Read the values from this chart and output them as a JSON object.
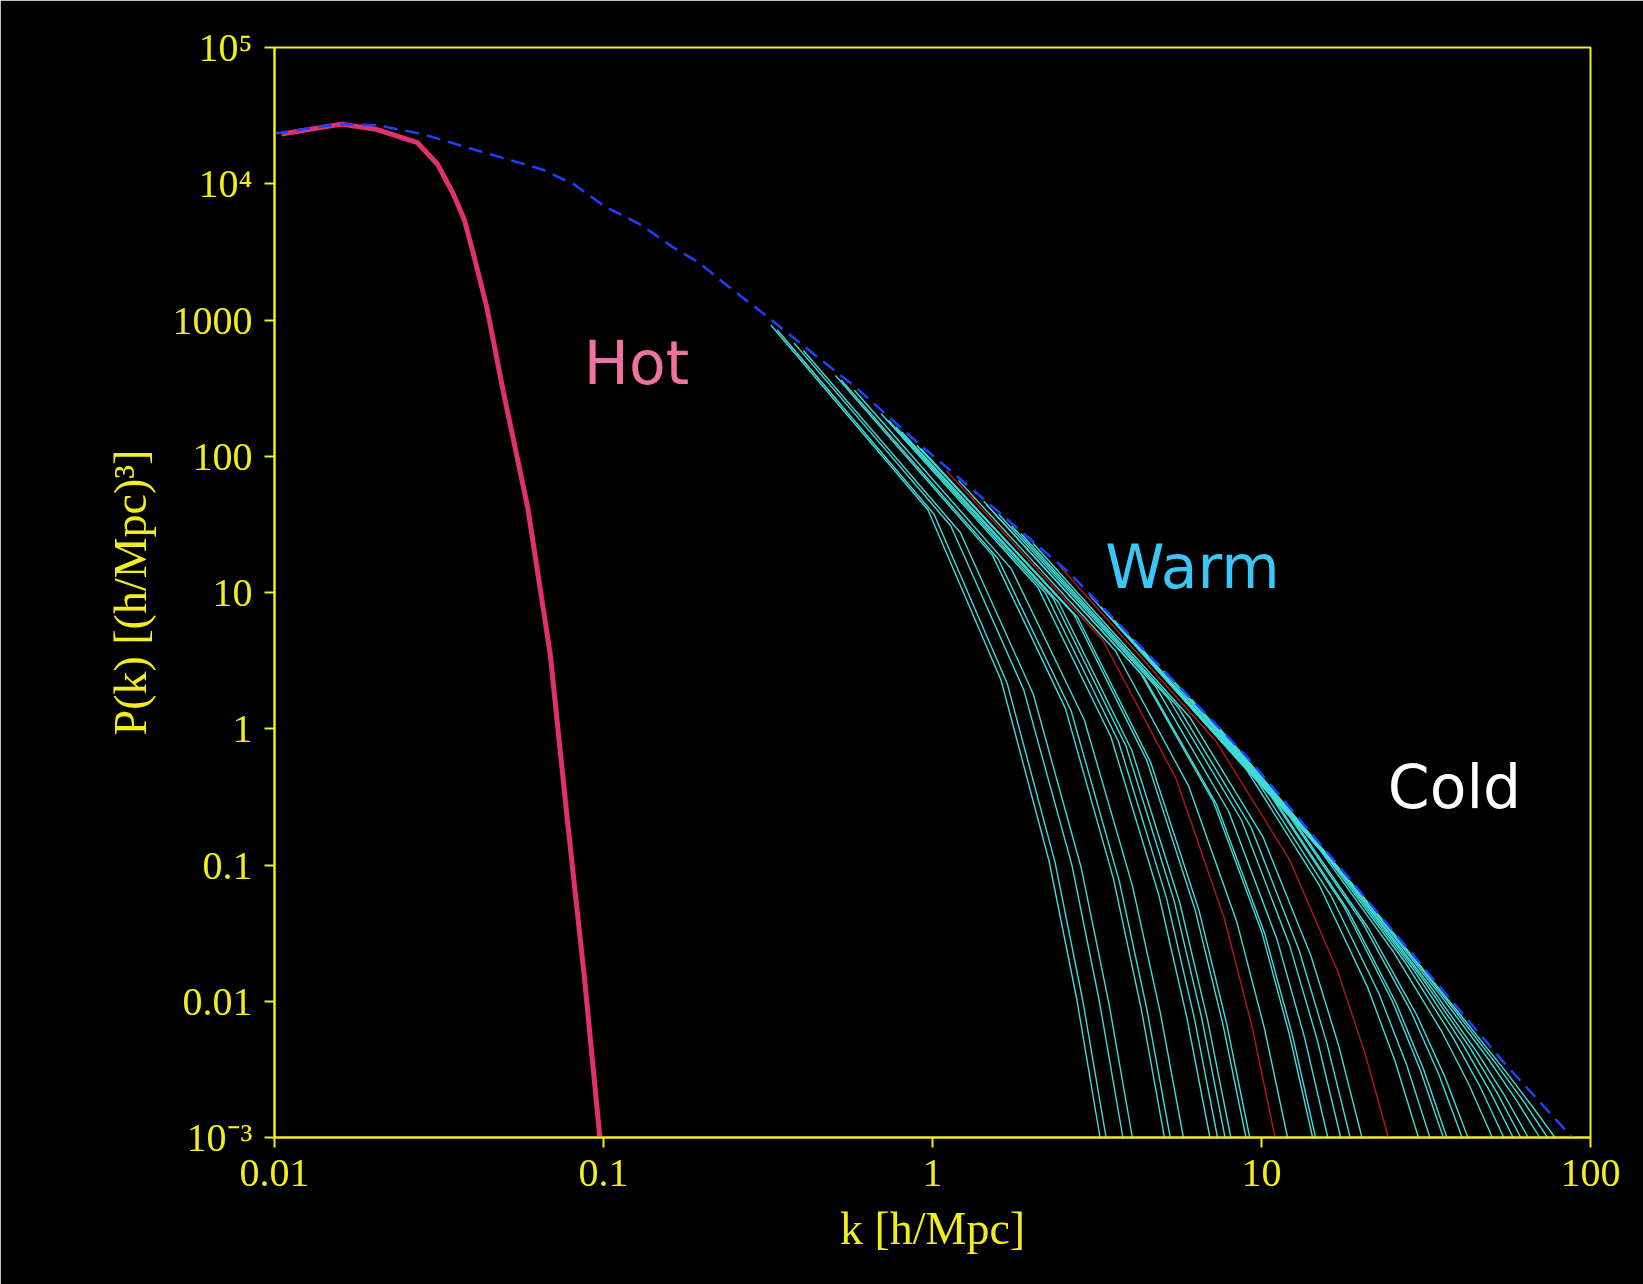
{
  "chart_data": {
    "type": "line",
    "xlabel": "k [h/Mpc]",
    "ylabel": "P(k) [(h/Mpc)³]",
    "log": "xy",
    "xlim": [
      0.01,
      100
    ],
    "ylim": [
      0.001,
      100000
    ],
    "xticks": [
      0.01,
      0.1,
      1,
      10,
      100
    ],
    "yticks": [
      {
        "value": 0.001,
        "label": "10⁻³"
      },
      0.01,
      0.1,
      1,
      10,
      100,
      1000,
      {
        "value": 10000,
        "label": "10⁴"
      },
      {
        "value": 100000,
        "label": "10⁵"
      }
    ],
    "grid": false,
    "annotations": [
      "Hot",
      "Warm",
      "Cold"
    ],
    "series": [
      {
        "color": "#e0306f",
        "x": [
          0.0105,
          0.016,
          0.0205,
          0.0272,
          0.0313,
          0.0349,
          0.0378,
          0.0402,
          0.0442,
          0.0493,
          0.0589,
          0.0689,
          0.0775,
          0.0873,
          0.0975
        ],
        "values": [
          23200,
          27400,
          25000,
          20000,
          13900,
          8500,
          5400,
          3080,
          1240,
          320,
          41.5,
          3.5,
          0.223,
          0.0157,
          0.001
        ]
      },
      {
        "color": "#3fdcd8",
        "x": [
          0.323,
          0.969,
          1.615,
          2.261,
          2.746,
          3.23
        ],
        "values": [
          916,
          40.3,
          2.28,
          0.107,
          0.0103,
          0.001
        ]
      },
      {
        "color": "#3fdcd8",
        "x": [
          0.337,
          1.011,
          1.685,
          2.359,
          2.865,
          3.37
        ],
        "values": [
          847,
          37.5,
          2.17,
          0.104,
          0.01,
          0.001
        ]
      },
      {
        "color": "#3fdcd8",
        "x": [
          0.379,
          1.137,
          1.895,
          2.653,
          3.222,
          3.79
        ],
        "values": [
          679,
          30.8,
          1.92,
          0.0998,
          0.00973,
          0.001
        ]
      },
      {
        "color": "#3fdcd8",
        "x": [
          0.405,
          1.215,
          2.025,
          2.835,
          3.443,
          4.05
        ],
        "values": [
          598,
          27.6,
          1.79,
          0.0942,
          0.00946,
          0.001
        ]
      },
      {
        "color": "#3fdcd8",
        "x": [
          0.507,
          1.521,
          2.535,
          3.549,
          4.31,
          5.07
        ],
        "values": [
          392,
          18.8,
          1.41,
          0.0791,
          0.00879,
          0.001
        ]
      },
      {
        "color": "#3fdcd8",
        "x": [
          0.528,
          1.584,
          2.64,
          3.696,
          4.488,
          5.28
        ],
        "values": [
          363,
          17.6,
          1.35,
          0.0762,
          0.00863,
          0.001
        ]
      },
      {
        "color": "#3fdcd8",
        "x": [
          0.579,
          1.737,
          2.895,
          4.053,
          4.922,
          5.79
        ],
        "values": [
          305,
          14.9,
          1.16,
          0.0703,
          0.0083,
          0.001
        ]
      },
      {
        "color": "#3fdcd8",
        "x": [
          0.697,
          2.091,
          3.485,
          4.879,
          5.925,
          6.97
        ],
        "values": [
          206,
          10.9,
          0.873,
          0.0597,
          0.00769,
          0.001
        ]
      },
      {
        "color": "#3fdcd8",
        "x": [
          0.735,
          2.205,
          3.675,
          5.145,
          6.248,
          7.35
        ],
        "values": [
          184,
          9.91,
          0.807,
          0.0571,
          0.00755,
          0.001
        ]
      },
      {
        "color": "#3fdcd8",
        "x": [
          0.775,
          2.325,
          3.875,
          5.425,
          6.588,
          7.75
        ],
        "values": [
          164,
          9.08,
          0.745,
          0.0547,
          0.00745,
          0.001
        ]
      },
      {
        "color": "#3fdcd8",
        "x": [
          0.807,
          2.421,
          4.035,
          5.649,
          6.86,
          8.07
        ],
        "values": [
          151,
          8.41,
          0.695,
          0.0524,
          0.00724,
          0.001
        ]
      },
      {
        "color": "#3fdcd8",
        "x": [
          0.897,
          2.691,
          4.485,
          6.279,
          7.625,
          8.97
        ],
        "values": [
          120,
          6.89,
          0.583,
          0.0472,
          0.00685,
          0.001
        ]
      },
      {
        "color": "#3fdcd8",
        "x": [
          0.921,
          2.763,
          4.605,
          6.447,
          7.829,
          9.21
        ],
        "values": [
          114,
          6.56,
          0.566,
          0.047,
          0.00692,
          0.001
        ]
      },
      {
        "color": "#b01a10",
        "x": [
          1.1,
          3.3,
          5.5,
          7.7,
          9.35,
          11.0
        ],
        "values": [
          78.7,
          4.44,
          0.43,
          0.0408,
          0.00659,
          0.001
        ]
      },
      {
        "color": "#3fdcd8",
        "x": [
          1.2,
          3.6,
          6.0,
          8.4,
          10.2,
          12.0
        ],
        "values": [
          66.5,
          3.72,
          0.381,
          0.0387,
          0.00637,
          0.001
        ]
      },
      {
        "color": "#3fdcd8",
        "x": [
          1.43,
          4.29,
          7.15,
          10.01,
          12.155,
          14.3
        ],
        "values": [
          46.7,
          2.56,
          0.29,
          0.0324,
          0.0057,
          0.001
        ]
      },
      {
        "color": "#3fdcd8",
        "x": [
          1.46,
          4.38,
          7.3,
          10.22,
          12.41,
          14.6
        ],
        "values": [
          44.1,
          2.42,
          0.279,
          0.0316,
          0.00566,
          0.001
        ]
      },
      {
        "color": "#3fdcd8",
        "x": [
          1.59,
          4.77,
          7.95,
          11.13,
          13.515,
          15.9
        ],
        "values": [
          37.5,
          2.04,
          0.247,
          0.0288,
          0.00543,
          0.001
        ]
      },
      {
        "color": "#3fdcd8",
        "x": [
          1.74,
          5.22,
          8.7,
          12.18,
          14.79,
          17.4
        ],
        "values": [
          30.9,
          1.66,
          0.213,
          0.0257,
          0.00515,
          0.001
        ]
      },
      {
        "color": "#3fdcd8",
        "x": [
          1.86,
          5.58,
          9.3,
          13.02,
          15.81,
          18.6
        ],
        "values": [
          27.0,
          1.44,
          0.189,
          0.0236,
          0.00491,
          0.001
        ]
      },
      {
        "color": "#3fdcd8",
        "x": [
          2.02,
          6.06,
          10.1,
          14.14,
          17.17,
          20.2
        ],
        "values": [
          23.0,
          1.21,
          0.161,
          0.0215,
          0.00471,
          0.001
        ]
      },
      {
        "color": "#b01a10",
        "x": [
          2.43,
          7.29,
          12.15,
          17.01,
          20.655,
          24.3
        ],
        "values": [
          15.7,
          0.802,
          0.11,
          0.0168,
          0.00412,
          0.001
        ]
      },
      {
        "color": "#3fdcd8",
        "x": [
          3.0,
          9.0,
          15.0,
          21.0,
          25.5,
          30.0
        ],
        "values": [
          9.57,
          0.501,
          0.0708,
          0.0127,
          0.0036,
          0.001
        ]
      },
      {
        "color": "#3fdcd8",
        "x": [
          3.25,
          9.75,
          16.25,
          22.75,
          27.625,
          32.5
        ],
        "values": [
          7.85,
          0.406,
          0.0597,
          0.0114,
          0.0034,
          0.001
        ]
      },
      {
        "color": "#3fdcd8",
        "x": [
          3.57,
          10.71,
          17.85,
          24.99,
          30.345,
          35.7
        ],
        "values": [
          6.25,
          0.318,
          0.049,
          0.01,
          0.00316,
          0.001
        ]
      },
      {
        "color": "#3fdcd8",
        "x": [
          3.66,
          10.98,
          18.3,
          25.62,
          31.11,
          36.6
        ],
        "values": [
          5.87,
          0.299,
          0.0467,
          0.00975,
          0.00316,
          0.001
        ]
      },
      {
        "color": "#3fdcd8",
        "x": [
          4.07,
          12.21,
          20.35,
          28.49,
          34.595,
          40.7
        ],
        "values": [
          4.52,
          0.225,
          0.0371,
          0.00838,
          0.0029,
          0.001
        ]
      },
      {
        "color": "#3fdcd8",
        "x": [
          4.24,
          12.72,
          21.2,
          29.68,
          36.04,
          42.4
        ],
        "values": [
          4.08,
          0.202,
          0.0339,
          0.00787,
          0.00281,
          0.001
        ]
      },
      {
        "color": "#3fdcd8",
        "x": [
          5.03,
          15.09,
          25.15,
          35.21,
          42.755,
          50.3
        ],
        "values": [
          2.67,
          0.128,
          0.0231,
          0.00607,
          0.00244,
          0.001
        ]
      },
      {
        "color": "#3fdcd8",
        "x": [
          5.45,
          16.35,
          27.25,
          38.15,
          46.325,
          54.5
        ],
        "values": [
          2.2,
          0.103,
          0.0195,
          0.00545,
          0.00232,
          0.001
        ]
      },
      {
        "color": "#3fdcd8",
        "x": [
          5.82,
          17.46,
          29.1,
          40.74,
          49.47,
          58.2
        ],
        "values": [
          1.86,
          0.0865,
          0.0168,
          0.00491,
          0.00218,
          0.001
        ]
      },
      {
        "color": "#3fdcd8",
        "x": [
          6.14,
          18.42,
          30.7,
          42.98,
          52.19,
          61.4
        ],
        "values": [
          1.64,
          0.0752,
          0.0149,
          0.00456,
          0.0021,
          0.001
        ]
      },
      {
        "color": "#3fdcd8",
        "x": [
          6.47,
          19.41,
          32.35,
          45.29,
          55.0,
          64.7
        ],
        "values": [
          1.43,
          0.0652,
          0.0132,
          0.0042,
          0.002,
          0.001
        ]
      },
      {
        "color": "#3fdcd8",
        "x": [
          7.01,
          21.03,
          35.05,
          49.07,
          59.585,
          70.1
        ],
        "values": [
          1.17,
          0.0524,
          0.011,
          0.00372,
          0.00187,
          0.001
        ]
      },
      {
        "color": "#3fdcd8",
        "x": [
          7.4,
          22.2,
          37.0,
          51.8,
          62.9,
          74.0
        ],
        "values": [
          1.03,
          0.0455,
          0.00984,
          0.00344,
          0.00181,
          0.001
        ]
      },
      {
        "color": "#3fdcd8",
        "x": [
          7.8,
          23.4,
          39.0,
          54.6,
          66.3,
          78.0
        ],
        "values": [
          0.902,
          0.0394,
          0.00873,
          0.00316,
          0.00171,
          0.001
        ]
      },
      {
        "color": "#2040ff",
        "line_style": "dashed",
        "x": [
          0.01,
          0.016,
          0.0206,
          0.0281,
          0.0384,
          0.0653,
          0.0813,
          0.101,
          0.13,
          0.162,
          0.195,
          0.229,
          0.313,
          0.428,
          0.585,
          0.875,
          1.5,
          2.61,
          5.0,
          9.0,
          18.0,
          32.4,
          55.0,
          88.0
        ],
        "values": [
          23400,
          27500,
          26800,
          23200,
          18500,
          12700,
          9900,
          6800,
          5000,
          3440,
          2640,
          1920,
          1070,
          583,
          320,
          134,
          44,
          13.9,
          2.74,
          0.63,
          0.0857,
          0.0157,
          0.00347,
          0.001
        ]
      }
    ]
  }
}
